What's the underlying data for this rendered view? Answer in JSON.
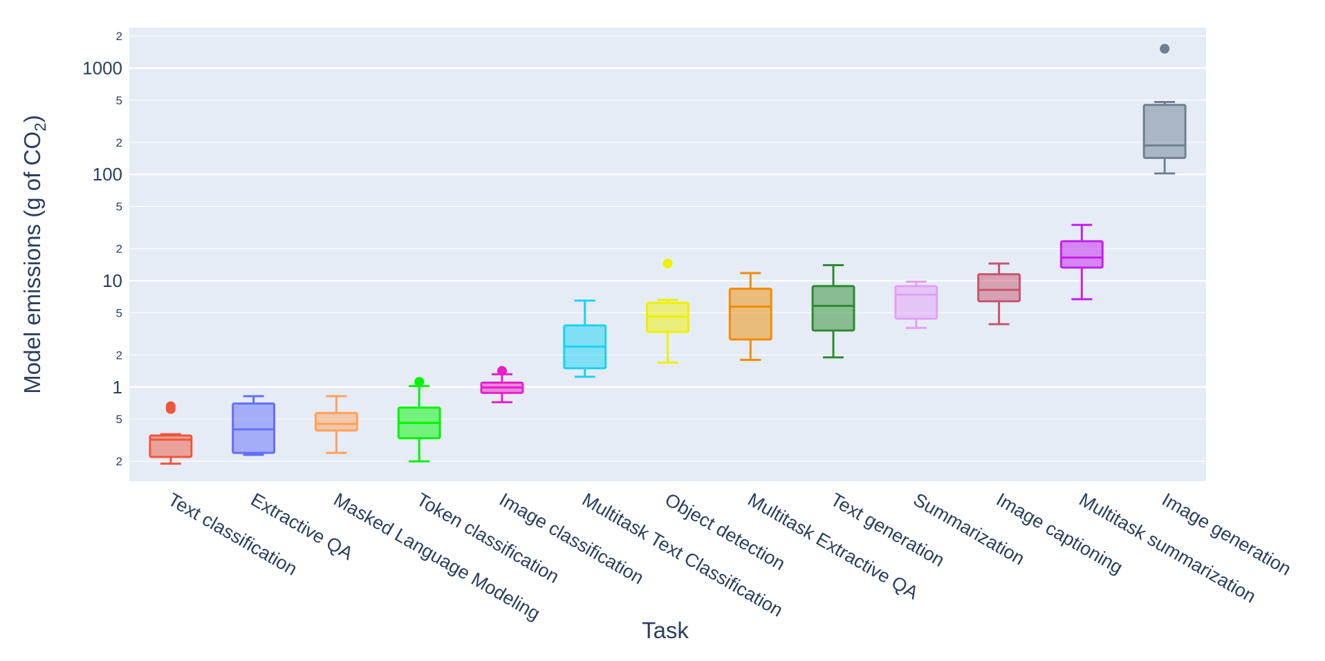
{
  "chart_data": {
    "type": "box",
    "xlabel": "Task",
    "ylabel": {
      "prefix": "Model emissions (g of CO",
      "subscript": "2",
      "suffix": ")"
    },
    "y_scale": "log",
    "ylim": [
      0.13,
      2400
    ],
    "y_major_ticks": [
      {
        "value": 1,
        "label": "1"
      },
      {
        "value": 10,
        "label": "10"
      },
      {
        "value": 100,
        "label": "100"
      },
      {
        "value": 1000,
        "label": "1000"
      }
    ],
    "y_minor_ticks": [
      {
        "value": 0.2,
        "label": "2"
      },
      {
        "value": 0.5,
        "label": "5"
      },
      {
        "value": 2,
        "label": "2"
      },
      {
        "value": 5,
        "label": "5"
      },
      {
        "value": 20,
        "label": "2"
      },
      {
        "value": 50,
        "label": "5"
      },
      {
        "value": 200,
        "label": "2"
      },
      {
        "value": 500,
        "label": "5"
      },
      {
        "value": 2000,
        "label": "2"
      }
    ],
    "grid": true,
    "legend": "none",
    "background": "#e5ecf6",
    "categories": [
      "Text classification",
      "Extractive QA",
      "Masked Language Modeling",
      "Token classification",
      "Image classification",
      "Multitask Text Classification",
      "Object detection",
      "Multitask Extractive QA",
      "Text generation",
      "Summarization",
      "Image captioning",
      "Multitask summarization",
      "Image generation"
    ],
    "boxes": [
      {
        "name": "Text classification",
        "color": "#ef553b",
        "min": 0.19,
        "q1": 0.22,
        "median": 0.32,
        "q3": 0.35,
        "max": 0.36,
        "outliers": [
          0.62,
          0.66
        ]
      },
      {
        "name": "Extractive QA",
        "color": "#636efa",
        "min": 0.23,
        "q1": 0.24,
        "median": 0.4,
        "q3": 0.7,
        "max": 0.82,
        "outliers": []
      },
      {
        "name": "Masked Language Modeling",
        "color": "#ffa15a",
        "min": 0.24,
        "q1": 0.39,
        "median": 0.45,
        "q3": 0.57,
        "max": 0.82,
        "outliers": []
      },
      {
        "name": "Token classification",
        "color": "#00f500",
        "min": 0.2,
        "q1": 0.33,
        "median": 0.46,
        "q3": 0.64,
        "max": 1.02,
        "outliers": [
          1.12
        ]
      },
      {
        "name": "Image classification",
        "color": "#e81ec8",
        "min": 0.72,
        "q1": 0.88,
        "median": 0.99,
        "q3": 1.1,
        "max": 1.32,
        "outliers": [
          1.42
        ]
      },
      {
        "name": "Multitask Text Classification",
        "color": "#19d3f3",
        "min": 1.25,
        "q1": 1.5,
        "median": 2.4,
        "q3": 3.8,
        "max": 6.5,
        "outliers": []
      },
      {
        "name": "Object detection",
        "color": "#f0f000",
        "min": 1.7,
        "q1": 3.3,
        "median": 4.6,
        "q3": 6.2,
        "max": 6.6,
        "outliers": [
          14.5
        ]
      },
      {
        "name": "Multitask Extractive QA",
        "color": "#f08c00",
        "min": 1.8,
        "q1": 2.8,
        "median": 5.7,
        "q3": 8.4,
        "max": 11.8,
        "outliers": []
      },
      {
        "name": "Text generation",
        "color": "#2e8b2e",
        "min": 1.9,
        "q1": 3.4,
        "median": 5.8,
        "q3": 8.9,
        "max": 14,
        "outliers": []
      },
      {
        "name": "Summarization",
        "color": "#e39ff6",
        "min": 3.6,
        "q1": 4.4,
        "median": 7.4,
        "q3": 8.9,
        "max": 9.8,
        "outliers": []
      },
      {
        "name": "Image captioning",
        "color": "#c8556e",
        "min": 3.9,
        "q1": 6.4,
        "median": 8.2,
        "q3": 11.5,
        "max": 14.5,
        "outliers": []
      },
      {
        "name": "Multitask summarization",
        "color": "#c71ff0",
        "min": 6.7,
        "q1": 13.3,
        "median": 16.5,
        "q3": 23.5,
        "max": 33.5,
        "outliers": []
      },
      {
        "name": "Image generation",
        "color": "#708090",
        "min": 102,
        "q1": 143,
        "median": 187,
        "q3": 450,
        "max": 480,
        "outliers": [
          1520
        ]
      }
    ]
  }
}
